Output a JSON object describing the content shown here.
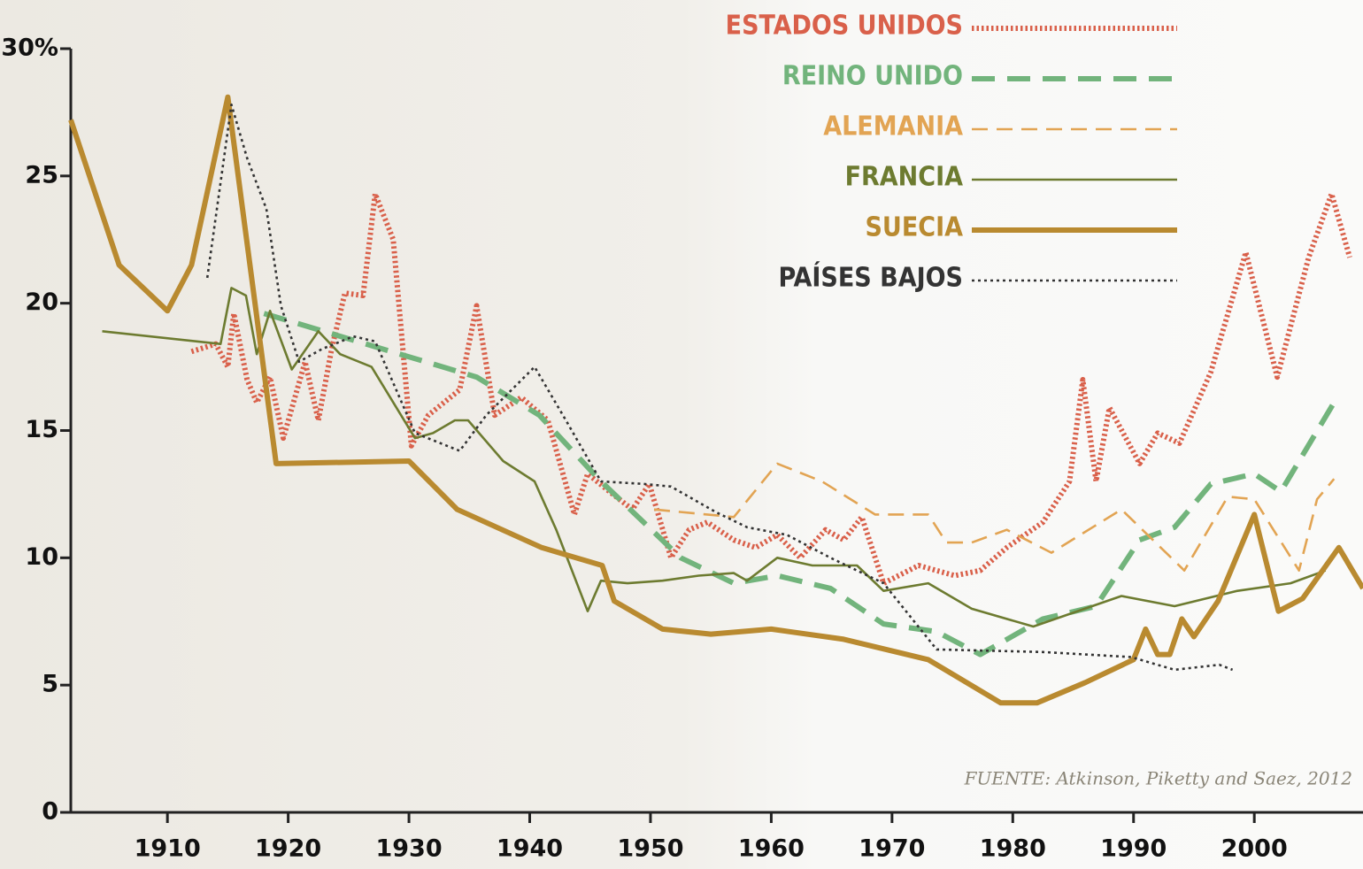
{
  "chart_data": {
    "type": "line",
    "source": "FUENTE: Atkinson, Piketty and Saez, 2012",
    "xlim": [
      1902,
      2009
    ],
    "xticks": [
      1910,
      1920,
      1930,
      1940,
      1950,
      1960,
      1970,
      1980,
      1990,
      2000
    ],
    "ylim": [
      0,
      30
    ],
    "yticks": [
      0,
      5,
      10,
      15,
      20,
      25,
      {
        "value": 30,
        "label": "30%"
      }
    ],
    "legend": "top-right",
    "series": [
      {
        "name": "ESTADOS UNIDOS",
        "color": "#d9604a",
        "style": "dotted",
        "weight": "thick",
        "x": [
          1912,
          1914,
          1915,
          1915.5,
          1916.6,
          1917.4,
          1918.5,
          1919.6,
          1921.4,
          1922.5,
          1923.6,
          1924.7,
          1926.2,
          1927.2,
          1928.7,
          1930.2,
          1931.6,
          1934.2,
          1935.6,
          1937.1,
          1939.3,
          1941.5,
          1943.7,
          1944.8,
          1946.6,
          1948.5,
          1949.9,
          1951.7,
          1953.2,
          1954.7,
          1956.9,
          1958.7,
          1960.5,
          1962.4,
          1964.5,
          1966,
          1967.5,
          1969.3,
          1972.2,
          1975.2,
          1977.3,
          1979.5,
          1982.5,
          1984.7,
          1985.8,
          1986.9,
          1988,
          1990.5,
          1992,
          1993.8,
          1996.4,
          1999.3,
          2001.9,
          2004.5,
          2006.4,
          2007.9
        ],
        "values": [
          18.1,
          18.4,
          17.5,
          19.6,
          17.0,
          16.1,
          17.1,
          14.7,
          17.7,
          15.4,
          18.2,
          20.4,
          20.3,
          24.3,
          22.5,
          14.4,
          15.6,
          16.6,
          19.9,
          15.6,
          16.3,
          15.4,
          11.7,
          13.3,
          12.6,
          11.9,
          12.9,
          10.0,
          11.1,
          11.4,
          10.7,
          10.4,
          10.9,
          10.0,
          11.1,
          10.7,
          11.6,
          9.0,
          9.7,
          9.3,
          9.5,
          10.4,
          11.4,
          13.0,
          17.0,
          13.0,
          15.9,
          13.7,
          14.9,
          14.5,
          17.3,
          22.0,
          17.1,
          21.8,
          24.3,
          21.8
        ]
      },
      {
        "name": "REINO UNIDO",
        "color": "#72b47c",
        "style": "dashed",
        "weight": "thick",
        "x": [
          1918,
          1935.6,
          1940.8,
          1945.9,
          1952.5,
          1956.9,
          1960.5,
          1964.9,
          1969.3,
          1973.7,
          1977.3,
          1982.5,
          1986.9,
          1990.5,
          1993.4,
          1996.4,
          2000,
          2002.2,
          2006.6
        ],
        "values": [
          19.6,
          17.1,
          15.6,
          13.0,
          10.0,
          9.0,
          9.3,
          8.8,
          7.4,
          7.1,
          6.2,
          7.6,
          8.1,
          10.7,
          11.2,
          12.9,
          13.3,
          12.6,
          16.1
        ]
      },
      {
        "name": "ALEMANIA",
        "color": "#e2a453",
        "style": "dashed",
        "weight": "thin",
        "x": [
          1950.3,
          1956.9,
          1960.5,
          1964.2,
          1968.6,
          1973,
          1974.5,
          1976.6,
          1979.5,
          1983.2,
          1989,
          1994.2,
          1997.8,
          2000,
          2003.7,
          2005.2,
          2006.6
        ],
        "values": [
          11.9,
          11.6,
          13.7,
          13.0,
          11.7,
          11.7,
          10.6,
          10.6,
          11.1,
          10.2,
          11.9,
          9.5,
          12.4,
          12.3,
          9.5,
          12.3,
          13.1
        ]
      },
      {
        "name": "FRANCIA",
        "color": "#6d7b30",
        "style": "solid",
        "weight": "thin",
        "x": [
          1904.6,
          1914.4,
          1915.3,
          1916.5,
          1917.4,
          1918.5,
          1920.3,
          1922.5,
          1924.3,
          1926.9,
          1930.5,
          1932,
          1933.8,
          1934.9,
          1937.8,
          1940.4,
          1942.2,
          1944.8,
          1945.9,
          1948.1,
          1951,
          1954,
          1956.9,
          1958,
          1960.5,
          1963.4,
          1967.1,
          1969.3,
          1973,
          1976.6,
          1981.7,
          1989,
          1993.4,
          1998.6,
          2003,
          2005.9
        ],
        "values": [
          18.9,
          18.4,
          20.6,
          20.3,
          18.0,
          19.7,
          17.4,
          18.9,
          18.0,
          17.5,
          14.7,
          14.9,
          15.4,
          15.4,
          13.8,
          13.0,
          11.1,
          7.9,
          9.1,
          9.0,
          9.1,
          9.3,
          9.4,
          9.1,
          10.0,
          9.7,
          9.7,
          8.7,
          9.0,
          8.0,
          7.3,
          8.5,
          8.1,
          8.7,
          9.0,
          9.5
        ]
      },
      {
        "name": "SUECIA",
        "color": "#b98a30",
        "style": "solid",
        "weight": "thick",
        "x": [
          1902,
          1906,
          1910,
          1912,
          1915,
          1919,
          1930,
          1934,
          1941,
          1946,
          1947,
          1951,
          1955,
          1960,
          1966,
          1973,
          1979,
          1982,
          1986,
          1990,
          1991,
          1992,
          1993,
          1994,
          1995,
          1997,
          2000,
          2002,
          2004,
          2007,
          2009
        ],
        "values": [
          27.2,
          21.5,
          19.7,
          21.5,
          28.1,
          13.7,
          13.8,
          11.9,
          10.4,
          9.7,
          8.3,
          7.2,
          7.0,
          7.2,
          6.8,
          6.0,
          4.3,
          4.3,
          5.1,
          6.0,
          7.2,
          6.2,
          6.2,
          7.6,
          6.9,
          8.3,
          11.7,
          7.9,
          8.4,
          10.4,
          8.8
        ]
      },
      {
        "name": "PAÍSES BAJOS",
        "color": "#333333",
        "style": "dotted",
        "weight": "thin",
        "x": [
          1913.3,
          1915.3,
          1916.6,
          1918.2,
          1919.4,
          1920.9,
          1922.8,
          1925.4,
          1927.2,
          1930.5,
          1934.2,
          1936.4,
          1940.4,
          1943,
          1945.9,
          1949.5,
          1951.7,
          1955.4,
          1958,
          1961.3,
          1964.9,
          1969.3,
          1973.7,
          1982.5,
          1989.8,
          1993.4,
          1997.1,
          1998.2
        ],
        "values": [
          21.0,
          27.8,
          25.7,
          23.7,
          19.9,
          17.7,
          18.2,
          18.7,
          18.5,
          14.9,
          14.2,
          15.6,
          17.5,
          15.4,
          13.0,
          12.9,
          12.8,
          11.8,
          11.2,
          10.9,
          10.0,
          9.0,
          6.4,
          6.3,
          6.1,
          5.6,
          5.8,
          5.6
        ]
      }
    ]
  }
}
